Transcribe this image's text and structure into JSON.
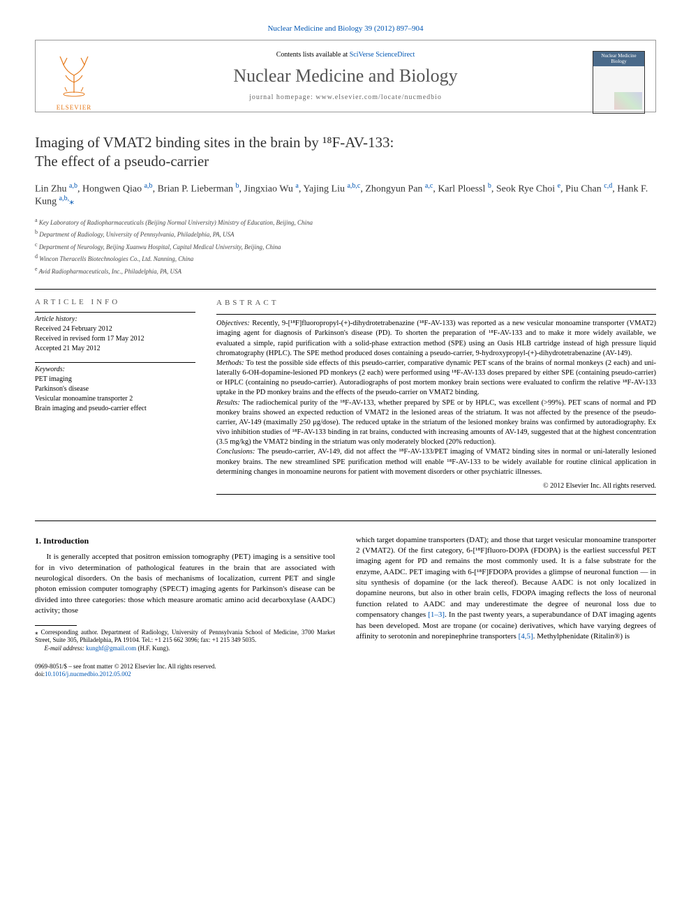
{
  "top_citation": "Nuclear Medicine and Biology 39 (2012) 897–904",
  "header": {
    "contents_prefix": "Contents lists available at ",
    "contents_link": "SciVerse ScienceDirect",
    "journal_name": "Nuclear Medicine and Biology",
    "homepage_prefix": "journal homepage: ",
    "homepage": "www.elsevier.com/locate/nucmedbio",
    "publisher": "ELSEVIER",
    "cover_title": "Nuclear Medicine Biology"
  },
  "title_line1": "Imaging of VMAT2 binding sites in the brain by ¹⁸F-AV-133:",
  "title_line2": "The effect of a pseudo-carrier",
  "authors_html": "Lin Zhu <sup>a,b</sup>, Hongwen Qiao <sup>a,b</sup>, Brian P. Lieberman <sup>b</sup>, Jingxiao Wu <sup>a</sup>, Yajing Liu <sup>a,b,c</sup>, Zhongyun Pan <sup>a,c</sup>, Karl Ploessl <sup>b</sup>, Seok Rye Choi <sup>e</sup>, Piu Chan <sup>c,d</sup>, Hank F. Kung <sup>a,b,</sup><span class='author-star'>⁎</span>",
  "affiliations": [
    {
      "sup": "a",
      "text": "Key Laboratory of Radiopharmaceuticals (Beijing Normal University) Ministry of Education, Beijing, China"
    },
    {
      "sup": "b",
      "text": "Department of Radiology, University of Pennsylvania, Philadelphia, PA, USA"
    },
    {
      "sup": "c",
      "text": "Department of Neurology, Beijing Xuanwu Hospital, Capital Medical University, Beijing, China"
    },
    {
      "sup": "d",
      "text": "Wincon Theracells Biotechnologies Co., Ltd. Nanning, China"
    },
    {
      "sup": "e",
      "text": "Avid Radiopharmaceuticals, Inc., Philadelphia, PA, USA"
    }
  ],
  "article_info": {
    "heading": "article info",
    "history_label": "Article history:",
    "history": [
      "Received 24 February 2012",
      "Received in revised form 17 May 2012",
      "Accepted 21 May 2012"
    ],
    "keywords_label": "Keywords:",
    "keywords": [
      "PET imaging",
      "Parkinson's disease",
      "Vesicular monoamine transporter 2",
      "Brain imaging and pseudo-carrier effect"
    ]
  },
  "abstract": {
    "heading": "abstract",
    "objectives_label": "Objectives:",
    "objectives": "Recently, 9-[¹⁸F]fluoropropyl-(+)-dihydrotetrabenazine (¹⁸F-AV-133) was reported as a new vesicular monoamine transporter (VMAT2) imaging agent for diagnosis of Parkinson's disease (PD). To shorten the preparation of ¹⁸F-AV-133 and to make it more widely available, we evaluated a simple, rapid purification with a solid-phase extraction method (SPE) using an Oasis HLB cartridge instead of high pressure liquid chromatography (HPLC). The SPE method produced doses containing a pseudo-carrier, 9-hydroxypropyl-(+)-dihydrotetrabenazine (AV-149).",
    "methods_label": "Methods:",
    "methods": "To test the possible side effects of this pseudo-carrier, comparative dynamic PET scans of the brains of normal monkeys (2 each) and uni-laterally 6-OH-dopamine-lesioned PD monkeys (2 each) were performed using ¹⁸F-AV-133 doses prepared by either SPE (containing pseudo-carrier) or HPLC (containing no pseudo-carrier). Autoradiographs of post mortem monkey brain sections were evaluated to confirm the relative ¹⁸F-AV-133 uptake in the PD monkey brains and the effects of the pseudo-carrier on VMAT2 binding.",
    "results_label": "Results:",
    "results": "The radiochemical purity of the ¹⁸F-AV-133, whether prepared by SPE or by HPLC, was excellent (>99%). PET scans of normal and PD monkey brains showed an expected reduction of VMAT2 in the lesioned areas of the striatum. It was not affected by the presence of the pseudo-carrier, AV-149 (maximally 250 μg/dose). The reduced uptake in the striatum of the lesioned monkey brains was confirmed by autoradiography. Ex vivo inhibition studies of ¹⁸F-AV-133 binding in rat brains, conducted with increasing amounts of AV-149, suggested that at the highest concentration (3.5 mg/kg) the VMAT2 binding in the striatum was only moderately blocked (20% reduction).",
    "conclusions_label": "Conclusions:",
    "conclusions": "The pseudo-carrier, AV-149, did not affect the ¹⁸F-AV-133/PET imaging of VMAT2 binding sites in normal or uni-laterally lesioned monkey brains. The new streamlined SPE purification method will enable ¹⁸F-AV-133 to be widely available for routine clinical application in determining changes in monoamine neurons for patient with movement disorders or other psychiatric illnesses.",
    "copyright": "© 2012 Elsevier Inc. All rights reserved."
  },
  "intro": {
    "heading": "1. Introduction",
    "para1": "It is generally accepted that positron emission tomography (PET) imaging is a sensitive tool for in vivo determination of pathological features in the brain that are associated with neurological disorders. On the basis of mechanisms of localization, current PET and single photon emission computer tomography (SPECT) imaging agents for Parkinson's disease can be divided into three categories: those which measure aromatic amino acid decarboxylase (AADC) activity; those",
    "para2a": "which target dopamine transporters (DAT); and those that target vesicular monoamine transporter 2 (VMAT2). Of the first category, 6-[¹⁸F]fluoro-DOPA (FDOPA) is the earliest successful PET imaging agent for PD and remains the most commonly used. It is a false substrate for the enzyme, AADC. PET imaging with 6-[¹⁸F]FDOPA provides a glimpse of neuronal function — in situ synthesis of dopamine (or the lack thereof). Because AADC is not only localized in dopamine neurons, but also in other brain cells, FDOPA imaging reflects the loss of neuronal function related to AADC and may underestimate the degree of neuronal loss due to compensatory changes ",
    "ref1": "[1–3]",
    "para2b": ". In the past twenty years, a superabundance of DAT imaging agents has been developed. Most are tropane (or cocaine) derivatives, which have varying degrees of affinity to serotonin and norepinephrine transporters ",
    "ref2": "[4,5]",
    "para2c": ". Methylphenidate (Ritalin®) is"
  },
  "footnotes": {
    "corr": "⁎ Corresponding author. Department of Radiology, University of Pennsylvania School of Medicine, 3700 Market Street, Suite 305, Philadelphia, PA 19104. Tel.: +1 215 662 3096; fax: +1 215 349 5035.",
    "email_label": "E-mail address:",
    "email": "kunghf@gmail.com",
    "email_name": "(H.F. Kung)."
  },
  "footer": {
    "issn": "0969-8051/$ – see front matter © 2012 Elsevier Inc. All rights reserved.",
    "doi_prefix": "doi:",
    "doi": "10.1016/j.nucmedbio.2012.05.002"
  }
}
